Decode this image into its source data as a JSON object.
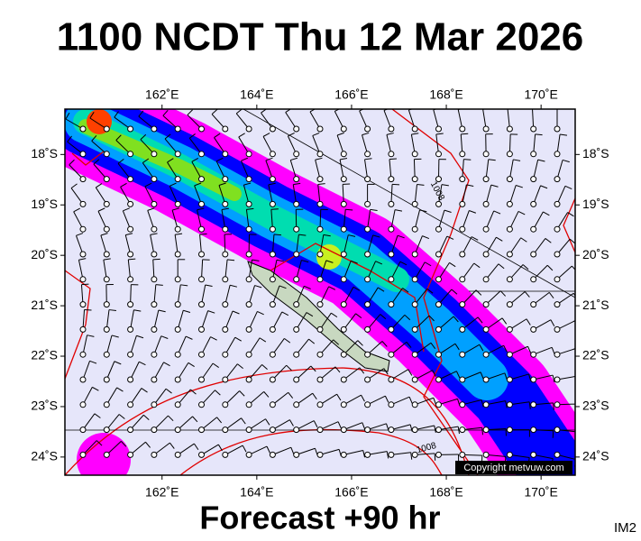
{
  "header": {
    "title": "1100 NCDT Thu 12 Mar 2026"
  },
  "map": {
    "xlim": [
      159.95,
      170.72
    ],
    "ylim": [
      -17.1,
      -24.36
    ],
    "xticks": [
      {
        "value": 162,
        "label": "162˚E"
      },
      {
        "value": 164,
        "label": "164˚E"
      },
      {
        "value": 166,
        "label": "166˚E"
      },
      {
        "value": 168,
        "label": "168˚E"
      },
      {
        "value": 170,
        "label": "170˚E"
      }
    ],
    "yticks": [
      {
        "value": -18,
        "label": "18˚S"
      },
      {
        "value": -19,
        "label": "19˚S"
      },
      {
        "value": -20,
        "label": "20˚S"
      },
      {
        "value": -21,
        "label": "21˚S"
      },
      {
        "value": -22,
        "label": "22˚S"
      },
      {
        "value": -23,
        "label": "23˚S"
      },
      {
        "value": -24,
        "label": "24˚S"
      }
    ],
    "isobar_labels": [
      "1008",
      "1008"
    ],
    "copyright": "Copyright metvuw.com"
  },
  "footer": {
    "forecast": "Forecast +90 hr",
    "code": "IM2"
  }
}
